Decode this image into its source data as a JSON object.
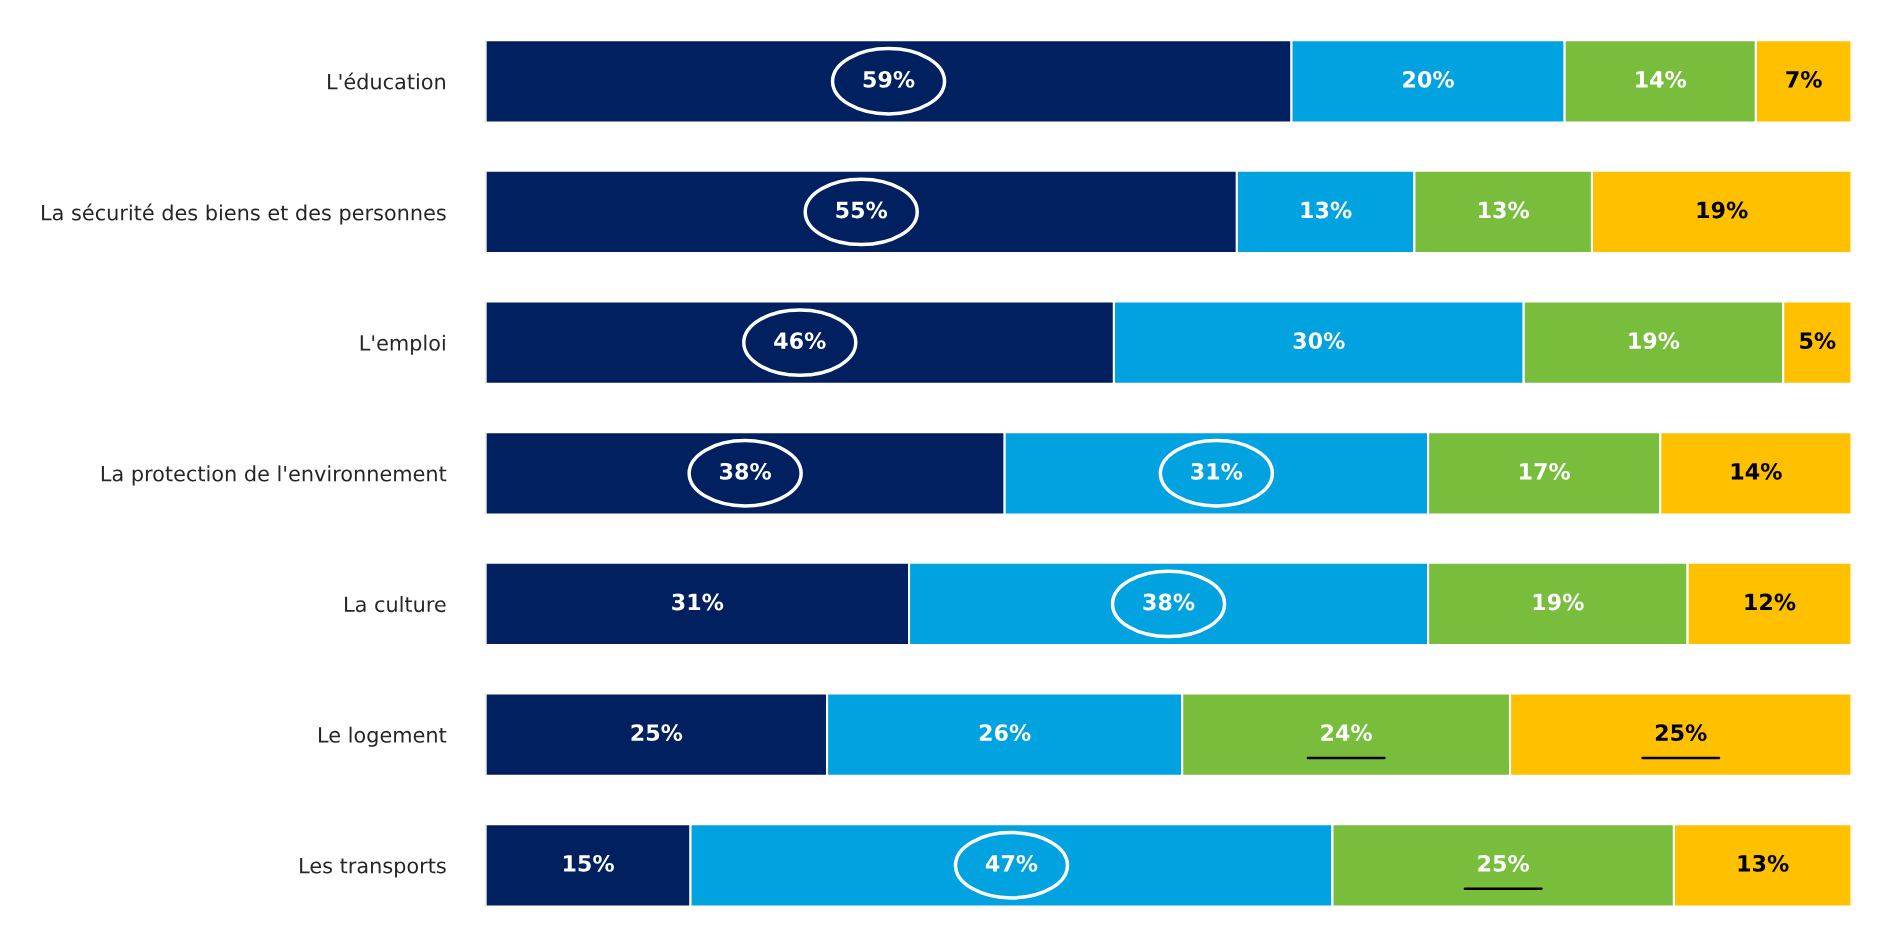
{
  "chart_data": {
    "type": "bar",
    "orientation": "horizontal",
    "stacked": true,
    "legend": false,
    "grid": false,
    "categories": [
      "L'éducation",
      "La sécurité des biens et des personnes",
      "L'emploi",
      "La protection de l'environnement",
      "La culture",
      "Le logement",
      "Les transports"
    ],
    "series": [
      {
        "color": "#002060",
        "values": [
          59,
          55,
          46,
          38,
          31,
          25,
          15
        ],
        "value_labels": [
          "59%",
          "55%",
          "46%",
          "38%",
          "31%",
          "25%",
          "15%"
        ]
      },
      {
        "color": "#00a3e0",
        "values": [
          20,
          13,
          30,
          31,
          38,
          26,
          47
        ],
        "value_labels": [
          "20%",
          "13%",
          "30%",
          "31%",
          "38%",
          "26%",
          "47%"
        ]
      },
      {
        "color": "#78be3c",
        "values": [
          14,
          13,
          19,
          17,
          19,
          24,
          25
        ],
        "value_labels": [
          "14%",
          "13%",
          "19%",
          "17%",
          "19%",
          "24%",
          "25%"
        ]
      },
      {
        "color": "#ffc000",
        "values": [
          7,
          19,
          5,
          14,
          12,
          25,
          13
        ],
        "value_labels": [
          "7%",
          "19%",
          "5%",
          "14%",
          "12%",
          "25%",
          "13%"
        ]
      }
    ]
  }
}
